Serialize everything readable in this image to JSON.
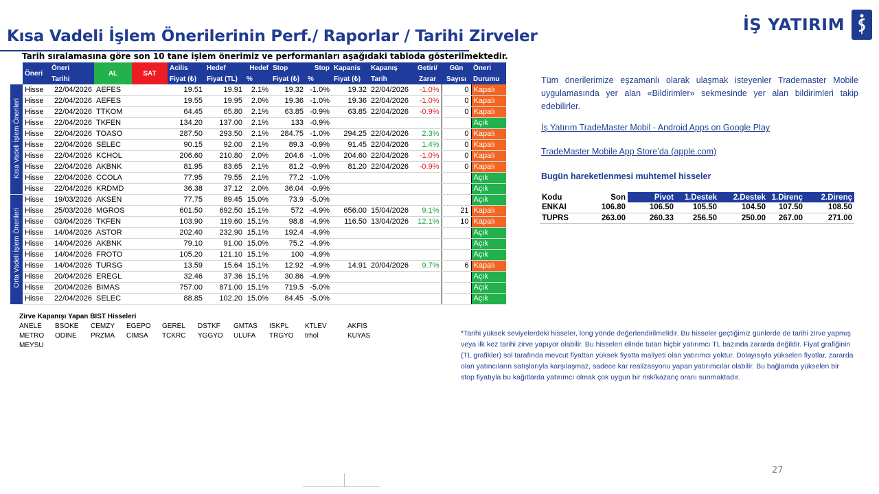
{
  "header": {
    "title": "Kısa Vadeli İşlem Önerilerinin Perf./ Raporlar / Tarihi Zirveler",
    "logo_text": "İŞ YATIRIM",
    "subtitle": "Tarih sıralamasına göre son 10 tane işlem önerimiz ve performanları aşağıdaki tabloda gösterilmektedir."
  },
  "table": {
    "headers_top": [
      "Öneri",
      "Öneri",
      "AL",
      "SAT",
      "Acilis",
      "Hedef",
      "Hedef",
      "Stop",
      "Stop",
      "Kapanis",
      "Kapanış",
      "Getiri/",
      "Gün",
      "Öneri"
    ],
    "headers_bottom": [
      "",
      "Tarihi",
      "",
      "",
      "Fiyat (₺)",
      "Fiyat (TL)",
      "%",
      "Fiyat (₺)",
      "%",
      "Fiyat (₺)",
      "Tarih",
      "Zarar",
      "Sayısı",
      "Durumu"
    ],
    "sections": [
      {
        "label": "Kısa Vadeli İşlem Önerileri",
        "rows": [
          [
            "Hisse",
            "22/04/2026",
            "AEFES",
            "",
            "19.51",
            "19.91",
            "2.1%",
            "19.32",
            "-1.0%",
            "19.32",
            "22/04/2026",
            "-1.0%",
            "0",
            "Kapalı"
          ],
          [
            "Hisse",
            "22/04/2026",
            "AEFES",
            "",
            "19.55",
            "19.95",
            "2.0%",
            "19.36",
            "-1.0%",
            "19.36",
            "22/04/2026",
            "-1.0%",
            "0",
            "Kapalı"
          ],
          [
            "Hisse",
            "22/04/2026",
            "TTKOM",
            "",
            "64.45",
            "65.80",
            "2.1%",
            "63.85",
            "-0.9%",
            "63.85",
            "22/04/2026",
            "-0.9%",
            "0",
            "Kapalı"
          ],
          [
            "Hisse",
            "22/04/2026",
            "TKFEN",
            "",
            "134.20",
            "137.00",
            "2.1%",
            "133",
            "-0.9%",
            "",
            "",
            "",
            "",
            "Açık"
          ],
          [
            "Hisse",
            "22/04/2026",
            "TOASO",
            "",
            "287.50",
            "293.50",
            "2.1%",
            "284.75",
            "-1.0%",
            "294.25",
            "22/04/2026",
            "2.3%",
            "0",
            "Kapalı"
          ],
          [
            "Hisse",
            "22/04/2026",
            "SELEC",
            "",
            "90.15",
            "92.00",
            "2.1%",
            "89.3",
            "-0.9%",
            "91.45",
            "22/04/2026",
            "1.4%",
            "0",
            "Kapalı"
          ],
          [
            "Hisse",
            "22/04/2026",
            "KCHOL",
            "",
            "206.60",
            "210.80",
            "2.0%",
            "204.6",
            "-1.0%",
            "204.60",
            "22/04/2026",
            "-1.0%",
            "0",
            "Kapalı"
          ],
          [
            "Hisse",
            "22/04/2026",
            "AKBNK",
            "",
            "81.95",
            "83.65",
            "2.1%",
            "81.2",
            "-0.9%",
            "81.20",
            "22/04/2026",
            "-0.9%",
            "0",
            "Kapalı"
          ],
          [
            "Hisse",
            "22/04/2026",
            "CCOLA",
            "",
            "77.95",
            "79.55",
            "2.1%",
            "77.2",
            "-1.0%",
            "",
            "",
            "",
            "",
            "Açık"
          ],
          [
            "Hisse",
            "22/04/2026",
            "KRDMD",
            "",
            "36.38",
            "37.12",
            "2.0%",
            "36.04",
            "-0.9%",
            "",
            "",
            "",
            "",
            "Açık"
          ]
        ]
      },
      {
        "label": "Orta Vadeli İşlem Önerileri",
        "rows": [
          [
            "Hisse",
            "19/03/2026",
            "AKSEN",
            "",
            "77.75",
            "89.45",
            "15.0%",
            "73.9",
            "-5.0%",
            "",
            "",
            "",
            "",
            "Açık"
          ],
          [
            "Hisse",
            "25/03/2026",
            "MGROS",
            "",
            "601.50",
            "692.50",
            "15.1%",
            "572",
            "-4.9%",
            "656.00",
            "15/04/2026",
            "9.1%",
            "21",
            "Kapalı"
          ],
          [
            "Hisse",
            "03/04/2026",
            "TKFEN",
            "",
            "103.90",
            "119.60",
            "15.1%",
            "98.8",
            "-4.9%",
            "116.50",
            "13/04/2026",
            "12.1%",
            "10",
            "Kapalı"
          ],
          [
            "Hisse",
            "14/04/2026",
            "ASTOR",
            "",
            "202.40",
            "232.90",
            "15.1%",
            "192.4",
            "-4.9%",
            "",
            "",
            "",
            "",
            "Açık"
          ],
          [
            "Hisse",
            "14/04/2026",
            "AKBNK",
            "",
            "79.10",
            "91.00",
            "15.0%",
            "75.2",
            "-4.9%",
            "",
            "",
            "",
            "",
            "Açık"
          ],
          [
            "Hisse",
            "14/04/2026",
            "FROTO",
            "",
            "105.20",
            "121.10",
            "15.1%",
            "100",
            "-4.9%",
            "",
            "",
            "",
            "",
            "Açık"
          ],
          [
            "Hisse",
            "14/04/2026",
            "TURSG",
            "",
            "13.59",
            "15.64",
            "15.1%",
            "12.92",
            "-4.9%",
            "14.91",
            "20/04/2026",
            "9.7%",
            "6",
            "Kapalı"
          ],
          [
            "Hisse",
            "20/04/2026",
            "EREGL",
            "",
            "32.46",
            "37.36",
            "15.1%",
            "30.86",
            "-4.9%",
            "",
            "",
            "",
            "",
            "Açık"
          ],
          [
            "Hisse",
            "20/04/2026",
            "BIMAS",
            "",
            "757.00",
            "871.00",
            "15.1%",
            "719.5",
            "-5.0%",
            "",
            "",
            "",
            "",
            "Açık"
          ],
          [
            "Hisse",
            "22/04/2026",
            "SELEC",
            "",
            "88.85",
            "102.20",
            "15.0%",
            "84.45",
            "-5.0%",
            "",
            "",
            "",
            "",
            "Açık"
          ]
        ]
      }
    ]
  },
  "right_panel": {
    "intro": "Tüm önerilerimize eşzamanlı olarak ulaşmak isteyenler Trademaster Mobile uygulamasında yer alan «Bildirimler» sekmesinde yer alan bildirimleri takip edebilirler.",
    "link_android": "İş Yatırım TradeMaster Mobil - Android Apps on Google Play",
    "link_ios": "TradeMaster Mobile App Store’da (apple.com)",
    "today_title": "Bugün hareketlenmesi muhtemel hisseler",
    "pivot_headers": [
      "Kodu",
      "Son",
      "Pivot",
      "1.Destek",
      "2.Destek",
      "1.Direnç",
      "2.Direnç"
    ],
    "pivot_rows": [
      [
        "ENKAI",
        "106.80",
        "106.50",
        "105.50",
        "104.50",
        "107.50",
        "108.50"
      ],
      [
        "TUPRS",
        "263.00",
        "260.33",
        "256.50",
        "250.00",
        "267.00",
        "271.00"
      ]
    ]
  },
  "zirve": {
    "title": "Zirve Kapanışı Yapan BIST Hisseleri",
    "tickers": [
      "ANELE",
      "BSOKE",
      "CEMZY",
      "EGEPO",
      "GEREL",
      "DSTKF",
      "GMTAS",
      "ISKPL",
      "KTLEV",
      "AKFIS",
      "METRO",
      "ODINE",
      "PRZMA",
      "CIMSA",
      "TCKRC",
      "YGGYO",
      "ULUFA",
      "TRGYO",
      "trhol",
      "KUYAS",
      "MEYSU"
    ]
  },
  "note": "*Tarihi yüksek seviyelerdeki hisseler, long yönde değerlendirilmelidir. Bu hisseler geçtiğimiz günlerde de tarihi zirve yapmış veya ilk kez tarihi zirve yapıyor olabilir. Bu hisseleri elinde tutan hiçbir yatırımcı TL bazında zararda değildir. Fiyat grafiğinin (TL grafikler) sol tarafında mevcut fiyattan yüksek fiyatta maliyeti olan yatırımcı yoktur. Dolayısıyla yükselen fiyatlar, zararda olan yatıncıların satışlarıyla karşılaşmaz, sadece kar realizasyonu yapan yatırımcılar olabilir. Bu bağlamda yükselen bir stop fiyatıyla bu kağıtlarda yatırımcı olmak çok uygun bir risk/kazanç oranı sunmaktadır.",
  "page_number": "27",
  "colors": {
    "brand": "#1f3c8f",
    "header_blue": "#1f3b9c",
    "al_green": "#22b14c",
    "sat_red": "#ed1c24",
    "closed_orange": "#f26522",
    "open_green": "#22b14c"
  }
}
